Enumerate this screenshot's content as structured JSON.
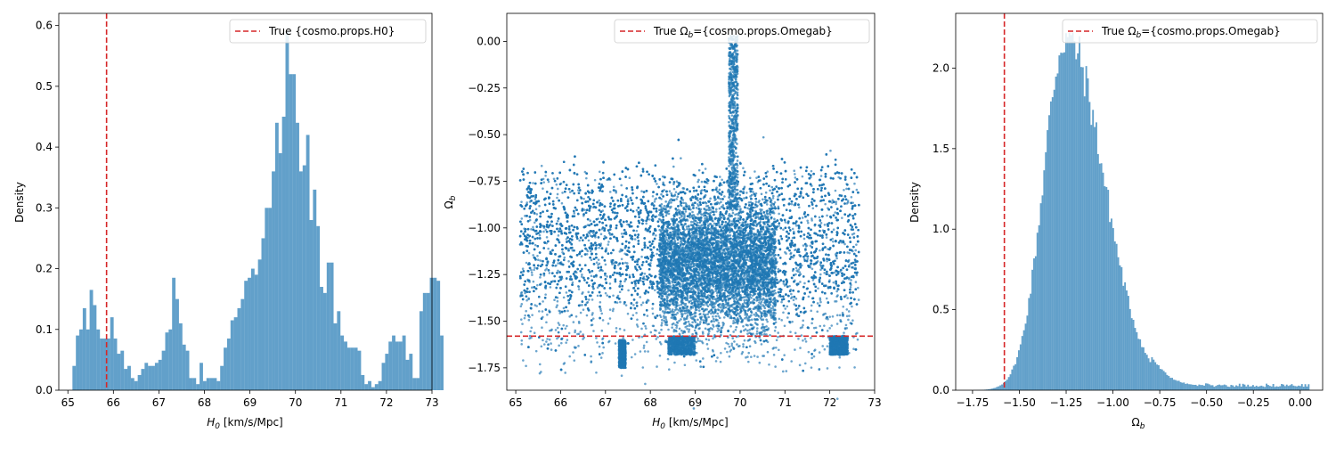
{
  "chart_data": [
    {
      "type": "histogram",
      "xlabel": "H0 [km/s/Mpc]",
      "ylabel": "Density",
      "xlim": [
        64.8,
        73.0
      ],
      "ylim": [
        0,
        0.62
      ],
      "xticks": [
        65,
        66,
        67,
        68,
        69,
        70,
        71,
        72,
        73
      ],
      "yticks": [
        0.0,
        0.1,
        0.2,
        0.3,
        0.4,
        0.5,
        0.6
      ],
      "xtick_labels": [
        "65",
        "66",
        "67",
        "68",
        "69",
        "70",
        "71",
        "72",
        "73"
      ],
      "ytick_labels": [
        "0.0",
        "0.1",
        "0.2",
        "0.3",
        "0.4",
        "0.5",
        "0.6"
      ],
      "bins_start": 65.1,
      "bin_width": 0.0755,
      "values": [
        0.04,
        0.09,
        0.1,
        0.135,
        0.1,
        0.165,
        0.14,
        0.1,
        0.085,
        0.085,
        0.085,
        0.12,
        0.085,
        0.06,
        0.065,
        0.035,
        0.04,
        0.02,
        0.015,
        0.025,
        0.035,
        0.045,
        0.04,
        0.04,
        0.045,
        0.05,
        0.065,
        0.095,
        0.1,
        0.185,
        0.15,
        0.11,
        0.075,
        0.065,
        0.02,
        0.02,
        0.01,
        0.045,
        0.015,
        0.02,
        0.02,
        0.02,
        0.015,
        0.04,
        0.07,
        0.085,
        0.115,
        0.12,
        0.135,
        0.15,
        0.18,
        0.185,
        0.2,
        0.19,
        0.215,
        0.25,
        0.3,
        0.3,
        0.36,
        0.44,
        0.39,
        0.45,
        0.59,
        0.52,
        0.52,
        0.44,
        0.36,
        0.37,
        0.42,
        0.28,
        0.33,
        0.27,
        0.17,
        0.16,
        0.21,
        0.21,
        0.11,
        0.13,
        0.09,
        0.08,
        0.07,
        0.07,
        0.07,
        0.065,
        0.025,
        0.01,
        0.015,
        0.005,
        0.01,
        0.015,
        0.045,
        0.06,
        0.08,
        0.09,
        0.08,
        0.08,
        0.09,
        0.05,
        0.06,
        0.02,
        0.02,
        0.13,
        0.16,
        0.16,
        0.185,
        0.185,
        0.18,
        0.09
      ],
      "reference_line": {
        "orientation": "vertical",
        "value": 65.85,
        "color": "#d62728",
        "style": "dashed"
      },
      "legend": {
        "label": "True {cosmo.props.H0}",
        "position": "top-right"
      },
      "bar_color": "#1f77b4"
    },
    {
      "type": "scatter",
      "xlabel": "H0 [km/s/Mpc]",
      "ylabel": "Ωb",
      "xlim": [
        64.8,
        73.0
      ],
      "ylim": [
        -1.87,
        0.15
      ],
      "xticks": [
        65,
        66,
        67,
        68,
        69,
        70,
        71,
        72,
        73
      ],
      "yticks": [
        0.0,
        -0.25,
        -0.5,
        -0.75,
        -1.0,
        -1.25,
        -1.5,
        -1.75
      ],
      "xtick_labels": [
        "65",
        "66",
        "67",
        "68",
        "69",
        "70",
        "71",
        "72",
        "73"
      ],
      "ytick_labels": [
        "0.00",
        "−0.25",
        "−0.50",
        "−0.75",
        "−1.00",
        "−1.25",
        "−1.50",
        "−1.75"
      ],
      "sample_count": 20000,
      "y_center": -1.25,
      "y_spread": 0.34,
      "features": [
        {
          "x_range": [
            69.75,
            69.95
          ],
          "y_range": [
            -0.9,
            0.03
          ]
        },
        {
          "x_range": [
            67.3,
            67.45
          ],
          "y_range": [
            -1.75,
            -1.6
          ]
        },
        {
          "x_range": [
            68.4,
            69.0
          ],
          "y_range": [
            -1.68,
            -1.58
          ]
        },
        {
          "x_range": [
            72.0,
            72.4
          ],
          "y_range": [
            -1.68,
            -1.58
          ]
        }
      ],
      "reference_line": {
        "orientation": "horizontal",
        "value": -1.58,
        "color": "#d62728",
        "style": "dashed"
      },
      "legend": {
        "label": "True Ωb={cosmo.props.Omegab}",
        "position": "top-right"
      },
      "point_color": "#1f77b4"
    },
    {
      "type": "histogram",
      "xlabel": "Ωb",
      "ylabel": "Density",
      "xlim": [
        -1.84,
        0.12
      ],
      "ylim": [
        0,
        2.34
      ],
      "xticks": [
        -1.75,
        -1.5,
        -1.25,
        -1.0,
        -0.75,
        -0.5,
        -0.25,
        0.0
      ],
      "yticks": [
        0.0,
        0.5,
        1.0,
        1.5,
        2.0
      ],
      "xtick_labels": [
        "−1.75",
        "−1.50",
        "−1.25",
        "−1.00",
        "−0.75",
        "−0.50",
        "−0.25",
        "0.00"
      ],
      "ytick_labels": [
        "0.0",
        "0.5",
        "1.0",
        "1.5",
        "2.0"
      ],
      "peak_center": -1.25,
      "peak_height": 2.2,
      "x_range": [
        -1.75,
        0.05
      ],
      "reference_line": {
        "orientation": "vertical",
        "value": -1.58,
        "color": "#d62728",
        "style": "dashed"
      },
      "legend": {
        "label": "True Ωb={cosmo.props.Omegab}",
        "position": "top-right"
      },
      "bar_color": "#1f77b4"
    }
  ],
  "labels": {
    "h0_axis_prefix": "H",
    "h0_axis_sub": "0",
    "h0_axis_suffix": " [km/s/Mpc]",
    "omega_symbol": "Ω",
    "omega_sub": "b",
    "density": "Density",
    "legend1": "True {cosmo.props.H0}",
    "legend_omega_prefix": "True ",
    "legend_omega_suffix": "={cosmo.props.Omegab}"
  }
}
